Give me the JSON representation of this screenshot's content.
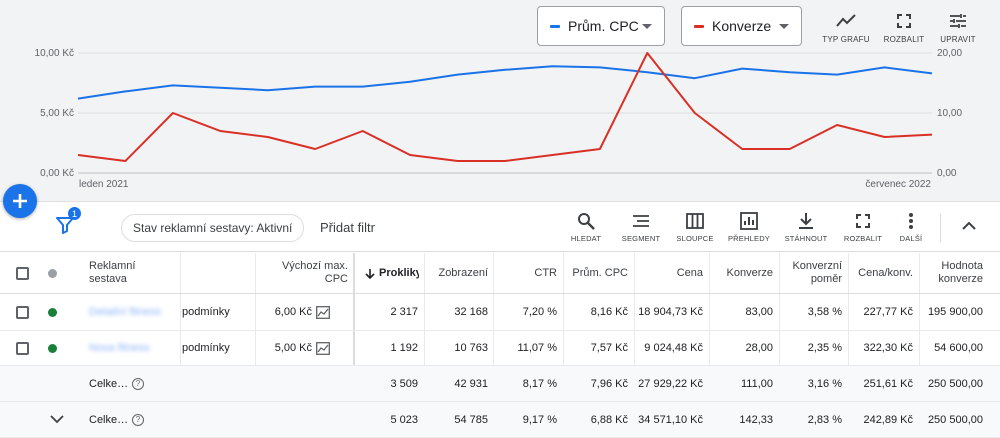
{
  "colors": {
    "cpc": "#1a73e8",
    "conv": "#d93025",
    "accent": "#1a73e8",
    "enabled": "#188038",
    "header_dot": "#9aa0a6"
  },
  "chart": {
    "metric1_label": "Prům. CPC",
    "metric2_label": "Konverze",
    "tools": [
      {
        "label": "TYP GRAFU",
        "icon": "trend-line-icon"
      },
      {
        "label": "ROZBALIT",
        "icon": "expand-icon"
      },
      {
        "label": "UPRAVIT",
        "icon": "tune-icon"
      }
    ],
    "left_ticks": [
      "10,00 Kč",
      "5,00 Kč",
      "0,00 Kč"
    ],
    "right_ticks": [
      "20,00",
      "10,00",
      "0,00"
    ],
    "x_start": "leden 2021",
    "x_end": "červenec 2022"
  },
  "chart_data": {
    "type": "line",
    "x": [
      "leden 2021",
      "",
      "",
      "",
      "",
      "",
      "",
      "",
      "",
      "",
      "",
      "",
      "",
      "",
      "",
      "",
      "",
      "",
      "červenec 2022"
    ],
    "series": [
      {
        "name": "Prům. CPC",
        "axis": "left",
        "values": [
          6.2,
          6.8,
          7.3,
          7.1,
          6.9,
          7.2,
          7.2,
          7.6,
          8.2,
          8.6,
          8.9,
          8.8,
          8.4,
          7.9,
          8.7,
          8.4,
          8.2,
          8.8,
          8.3
        ]
      },
      {
        "name": "Konverze",
        "axis": "right",
        "values": [
          3,
          2,
          10,
          7,
          6,
          4,
          7,
          3,
          2,
          2,
          3,
          4,
          20,
          10,
          4,
          4,
          8,
          6,
          6.4
        ]
      }
    ],
    "ylim_left": [
      0,
      10
    ],
    "ylim_right": [
      0,
      20
    ],
    "grid": true
  },
  "toolbar": {
    "filter_count": "1",
    "chip_label": "Stav reklamní sestavy: Aktivní",
    "add_filter": "Přidat filtr",
    "tools": [
      {
        "label": "HLEDAT",
        "icon": "search-icon"
      },
      {
        "label": "SEGMENT",
        "icon": "segment-icon"
      },
      {
        "label": "SLOUPCE",
        "icon": "columns-icon"
      },
      {
        "label": "PŘEHLEDY",
        "icon": "reports-icon"
      },
      {
        "label": "STÁHNOUT",
        "icon": "download-icon"
      },
      {
        "label": "ROZBALIT",
        "icon": "expand-icon"
      },
      {
        "label": "DALŠÍ",
        "icon": "more-icon"
      }
    ]
  },
  "table": {
    "headers": {
      "name": "Reklamní sestava",
      "bid": "Výchozí max. CPC",
      "clicks": "Prokliky",
      "impr": "Zobrazení",
      "ctr": "CTR",
      "cpc": "Prům. CPC",
      "cost": "Cena",
      "conv": "Konverze",
      "rate": "Konverzní poměr",
      "cpa": "Cena/konv.",
      "value": "Hodnota konverze"
    },
    "rows": [
      {
        "name": "Detailní fitness",
        "extra": "podmínky",
        "bid": "6,00 Kč",
        "clicks": "2 317",
        "impr": "32 168",
        "ctr": "7,20 %",
        "cpc": "8,16 Kč",
        "cost": "18 904,73 Kč",
        "conv": "83,00",
        "rate": "3,58 %",
        "cpa": "227,77 Kč",
        "value": "195 900,00"
      },
      {
        "name": "Nova fitness",
        "extra": "podmínky",
        "bid": "5,00 Kč",
        "clicks": "1 192",
        "impr": "10 763",
        "ctr": "11,07 %",
        "cpc": "7,57 Kč",
        "cost": "9 024,48 Kč",
        "conv": "28,00",
        "rate": "2,35 %",
        "cpa": "322,30 Kč",
        "value": "54 600,00"
      }
    ],
    "totals": [
      {
        "label": "Celke…",
        "clicks": "3 509",
        "impr": "42 931",
        "ctr": "8,17 %",
        "cpc": "7,96 Kč",
        "cost": "27 929,22 Kč",
        "conv": "111,00",
        "rate": "3,16 %",
        "cpa": "251,61 Kč",
        "value": "250 500,00"
      },
      {
        "label": "Celke…",
        "clicks": "5 023",
        "impr": "54 785",
        "ctr": "9,17 %",
        "cpc": "6,88 Kč",
        "cost": "34 571,10 Kč",
        "conv": "142,33",
        "rate": "2,83 %",
        "cpa": "242,89 Kč",
        "value": "250 500,00"
      }
    ]
  }
}
